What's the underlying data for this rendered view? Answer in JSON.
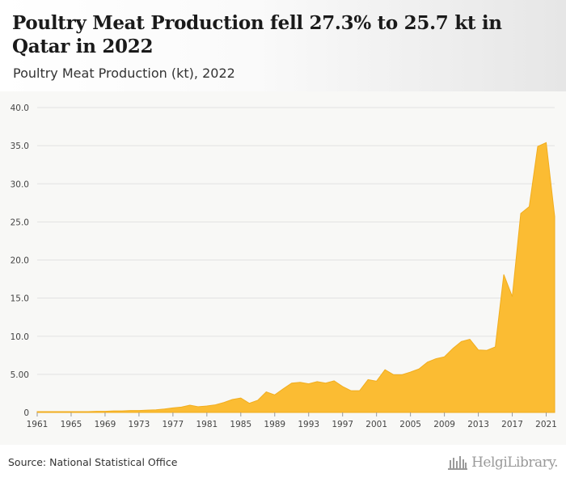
{
  "header": {
    "title": "Poultry Meat Production fell 27.3% to 25.7 kt in Qatar in 2022",
    "subtitle": "Poultry Meat Production (kt), 2022"
  },
  "footer": {
    "source": "Source: National Statistical Office",
    "logo_text": "HelgiLibrary."
  },
  "colors": {
    "area": "#fbbc33",
    "area_line": "#f1ad1e",
    "grid": "#e2e2e2",
    "axis_text": "#444444"
  },
  "chart_data": {
    "type": "area",
    "title": "Poultry Meat Production fell 27.3% to 25.7 kt in Qatar in 2022",
    "subtitle": "Poultry Meat Production (kt), 2022",
    "xlabel": "",
    "ylabel": "",
    "grid": true,
    "legend": "none",
    "ylim": [
      0,
      40
    ],
    "xlim": [
      1961,
      2022
    ],
    "y_ticks": [
      "0",
      "5.00",
      "10.0",
      "15.0",
      "20.0",
      "25.0",
      "30.0",
      "35.0",
      "40.0"
    ],
    "x_ticks": [
      1961,
      1965,
      1969,
      1973,
      1977,
      1981,
      1985,
      1989,
      1993,
      1997,
      2001,
      2005,
      2009,
      2013,
      2017,
      2021
    ],
    "series": [
      {
        "x": [
          1961,
          1962,
          1963,
          1964,
          1965,
          1966,
          1967,
          1968,
          1969,
          1970,
          1971,
          1972,
          1973,
          1974,
          1975,
          1976,
          1977,
          1978,
          1979,
          1980,
          1981,
          1982,
          1983,
          1984,
          1985,
          1986,
          1987,
          1988,
          1989,
          1990,
          1991,
          1992,
          1993,
          1994,
          1995,
          1996,
          1997,
          1998,
          1999,
          2000,
          2001,
          2002,
          2003,
          2004,
          2005,
          2006,
          2007,
          2008,
          2009,
          2010,
          2011,
          2012,
          2013,
          2014,
          2015,
          2016,
          2017,
          2018,
          2019,
          2020,
          2021,
          2022
        ],
        "values": [
          0.1,
          0.1,
          0.1,
          0.1,
          0.1,
          0.1,
          0.1,
          0.15,
          0.15,
          0.2,
          0.2,
          0.25,
          0.25,
          0.3,
          0.35,
          0.45,
          0.6,
          0.7,
          0.95,
          0.75,
          0.85,
          1.0,
          1.3,
          1.7,
          1.9,
          1.2,
          1.6,
          2.7,
          2.3,
          3.1,
          3.85,
          3.95,
          3.75,
          4.05,
          3.85,
          4.15,
          3.4,
          2.85,
          2.85,
          4.3,
          4.1,
          5.6,
          4.95,
          4.95,
          5.3,
          5.7,
          6.6,
          7.05,
          7.3,
          8.4,
          9.3,
          9.6,
          8.2,
          8.15,
          8.6,
          18.1,
          15.2,
          26.1,
          27.0,
          34.9,
          35.4,
          25.7
        ]
      }
    ]
  }
}
